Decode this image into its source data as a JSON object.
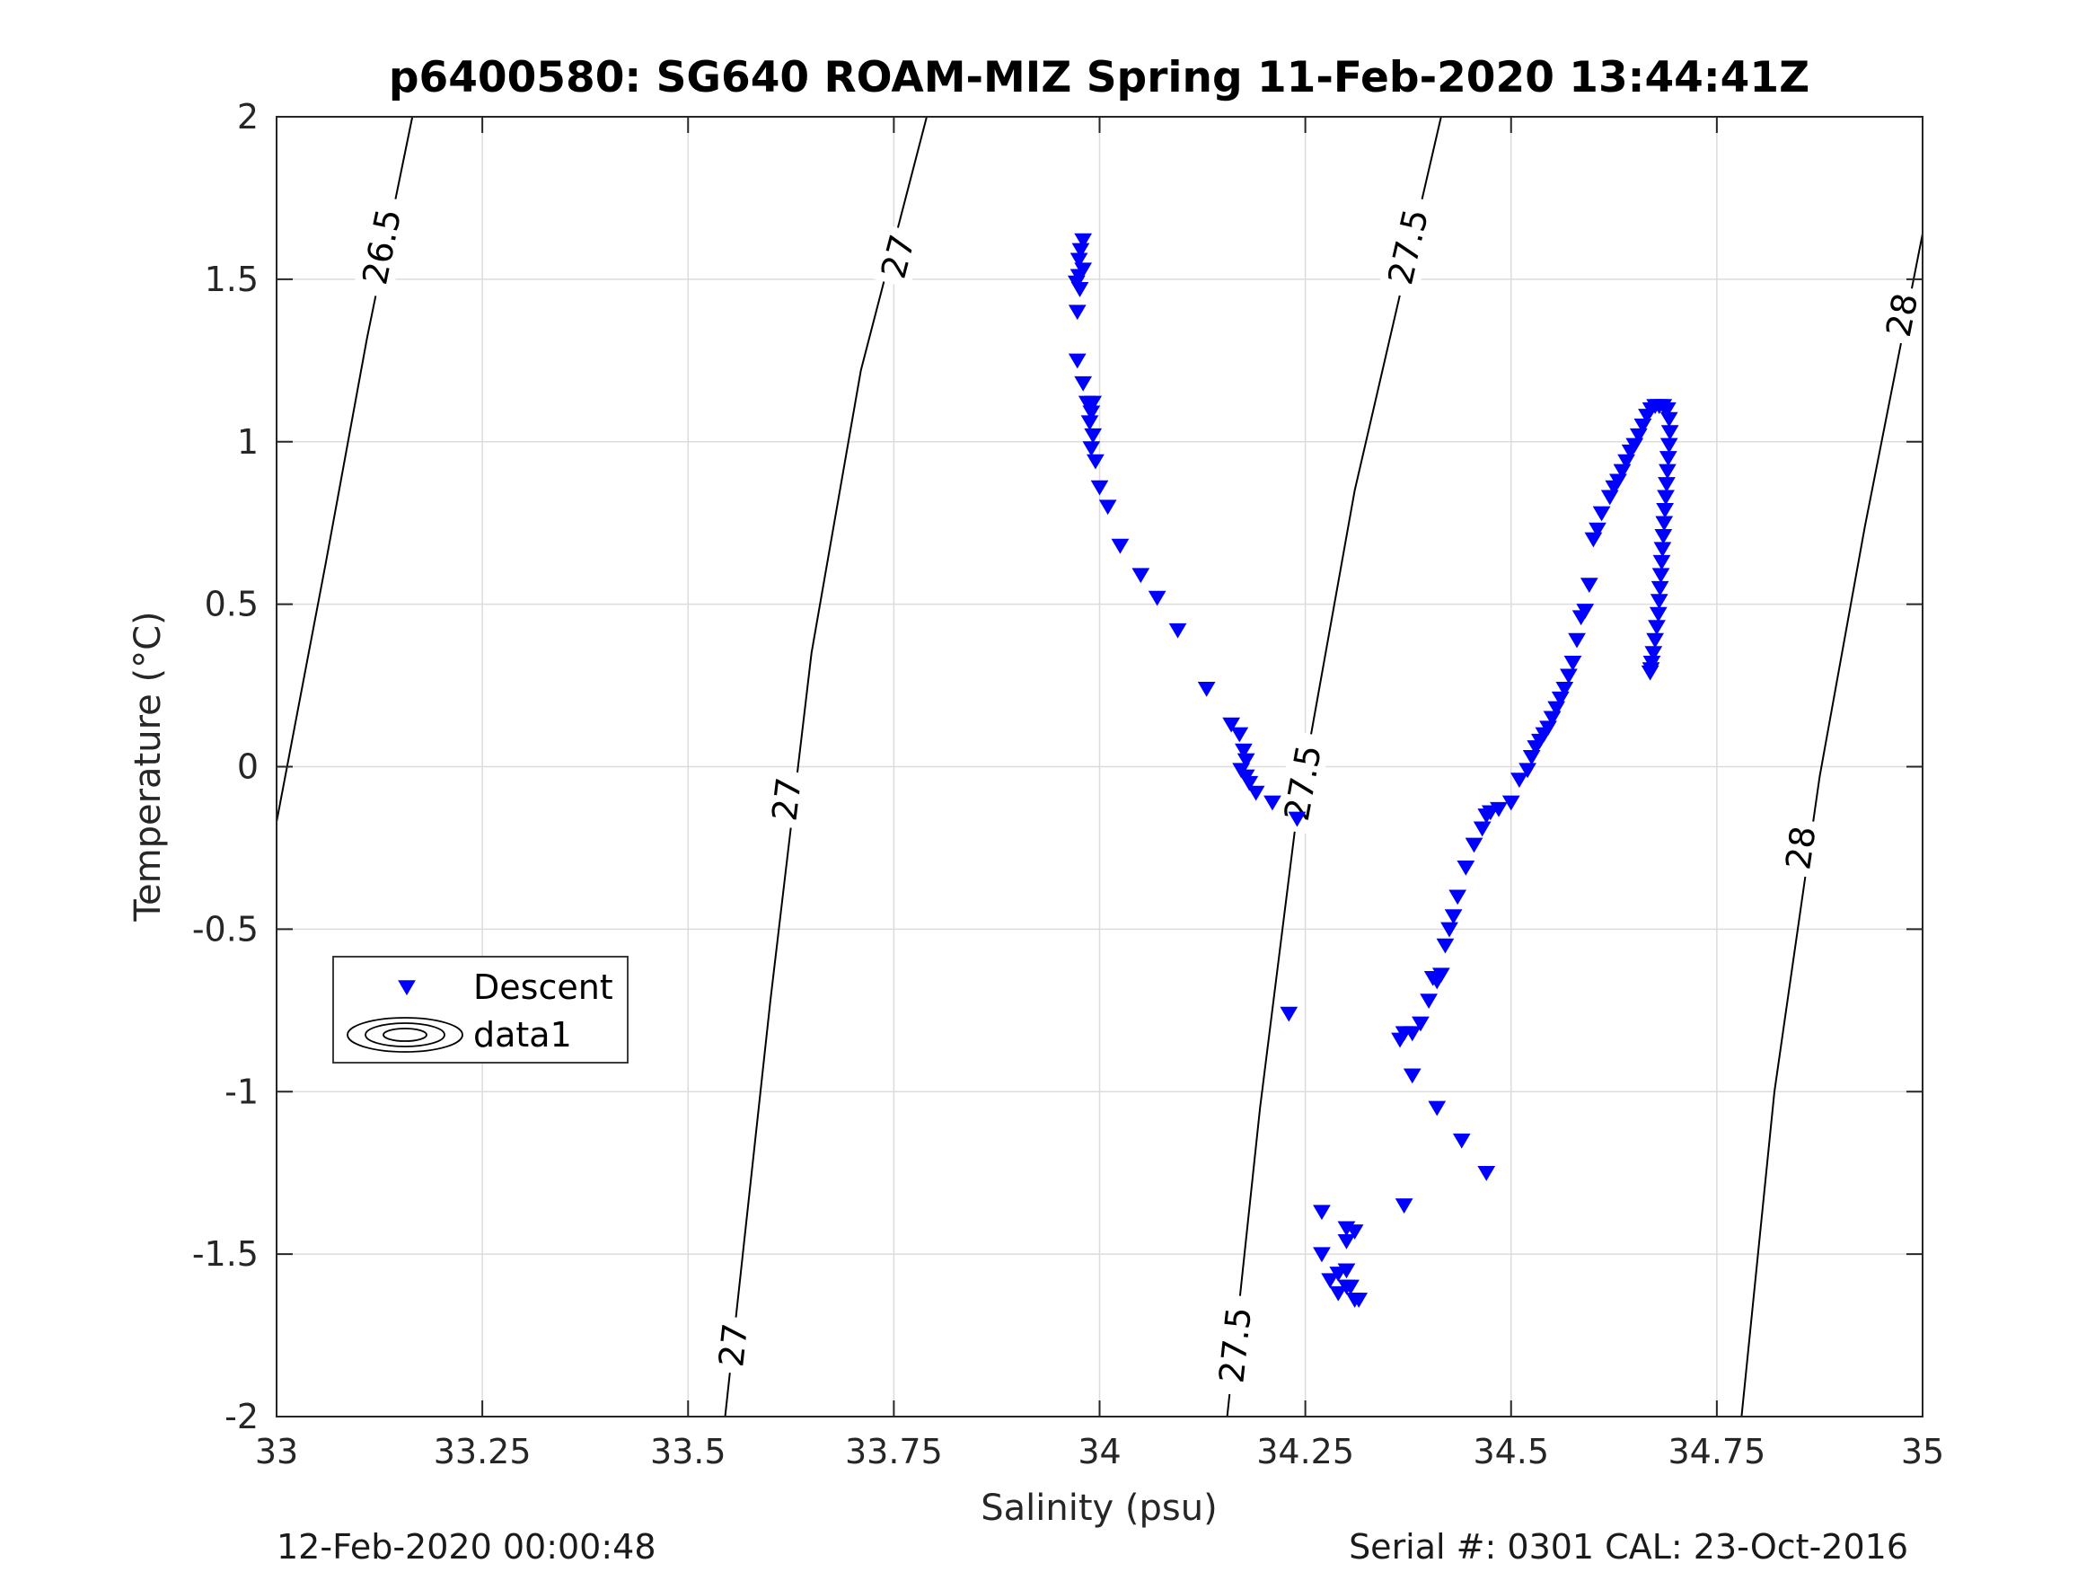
{
  "chart_data": {
    "type": "scatter",
    "title": "p6400580: SG640 ROAM-MIZ Spring 11-Feb-2020 13:44:41Z",
    "xlabel": "Salinity (psu)",
    "ylabel": "Temperature (°C)",
    "xlim": [
      33,
      35
    ],
    "ylim": [
      -2,
      2
    ],
    "xticks": [
      33,
      33.25,
      33.5,
      33.75,
      34,
      34.25,
      34.5,
      34.75,
      35
    ],
    "xtick_labels": [
      "33",
      "33.25",
      "33.5",
      "33.75",
      "34",
      "34.25",
      "34.5",
      "34.75",
      "35"
    ],
    "yticks": [
      -2,
      -1.5,
      -1,
      -0.5,
      0,
      0.5,
      1,
      1.5,
      2
    ],
    "ytick_labels": [
      "-2",
      "-1.5",
      "-1",
      "-0.5",
      "0",
      "0.5",
      "1",
      "1.5",
      "2"
    ],
    "grid": true,
    "legend": {
      "placement": "lower-left",
      "entries": [
        {
          "label": "Descent",
          "marker": "triangle-down",
          "color": "#0000ff"
        },
        {
          "label": "data1",
          "marker": "contour",
          "color": "#000000"
        }
      ]
    },
    "series": [
      {
        "name": "Descent",
        "color": "#0000ff",
        "marker": "triangle-down",
        "points": [
          [
            33.98,
            1.62
          ],
          [
            33.977,
            1.59
          ],
          [
            33.975,
            1.56
          ],
          [
            33.98,
            1.53
          ],
          [
            33.975,
            1.51
          ],
          [
            33.972,
            1.49
          ],
          [
            33.976,
            1.47
          ],
          [
            33.973,
            1.4
          ],
          [
            33.973,
            1.25
          ],
          [
            33.98,
            1.18
          ],
          [
            33.985,
            1.12
          ],
          [
            33.992,
            1.12
          ],
          [
            33.99,
            1.09
          ],
          [
            33.988,
            1.06
          ],
          [
            33.992,
            1.02
          ],
          [
            33.99,
            0.98
          ],
          [
            33.995,
            0.94
          ],
          [
            34.0,
            0.86
          ],
          [
            34.01,
            0.8
          ],
          [
            34.025,
            0.68
          ],
          [
            34.05,
            0.59
          ],
          [
            34.07,
            0.52
          ],
          [
            34.095,
            0.42
          ],
          [
            34.13,
            0.24
          ],
          [
            34.16,
            0.13
          ],
          [
            34.17,
            0.1
          ],
          [
            34.175,
            0.05
          ],
          [
            34.178,
            0.02
          ],
          [
            34.172,
            -0.01
          ],
          [
            34.178,
            -0.03
          ],
          [
            34.182,
            -0.05
          ],
          [
            34.19,
            -0.08
          ],
          [
            34.21,
            -0.11
          ],
          [
            34.24,
            -0.16
          ],
          [
            34.23,
            -0.76
          ],
          [
            34.27,
            -1.37
          ],
          [
            34.27,
            -1.5
          ],
          [
            34.28,
            -1.58
          ],
          [
            34.29,
            -1.62
          ],
          [
            34.3,
            -1.6
          ],
          [
            34.29,
            -1.56
          ],
          [
            34.3,
            -1.55
          ],
          [
            34.31,
            -1.64
          ],
          [
            34.3,
            -1.42
          ],
          [
            34.31,
            -1.43
          ],
          [
            34.3,
            -1.46
          ],
          [
            34.305,
            -1.6
          ],
          [
            34.315,
            -1.64
          ],
          [
            34.37,
            -1.35
          ],
          [
            34.47,
            -1.25
          ],
          [
            34.44,
            -1.15
          ],
          [
            34.41,
            -1.05
          ],
          [
            34.38,
            -0.95
          ],
          [
            34.365,
            -0.84
          ],
          [
            34.37,
            -0.82
          ],
          [
            34.38,
            -0.82
          ],
          [
            34.39,
            -0.79
          ],
          [
            34.4,
            -0.72
          ],
          [
            34.41,
            -0.66
          ],
          [
            34.405,
            -0.65
          ],
          [
            34.415,
            -0.64
          ],
          [
            34.42,
            -0.55
          ],
          [
            34.425,
            -0.5
          ],
          [
            34.43,
            -0.46
          ],
          [
            34.435,
            -0.4
          ],
          [
            34.445,
            -0.31
          ],
          [
            34.455,
            -0.24
          ],
          [
            34.465,
            -0.19
          ],
          [
            34.47,
            -0.15
          ],
          [
            34.475,
            -0.14
          ],
          [
            34.485,
            -0.13
          ],
          [
            34.5,
            -0.11
          ],
          [
            34.51,
            -0.04
          ],
          [
            34.52,
            -0.01
          ],
          [
            34.525,
            0.03
          ],
          [
            34.53,
            0.06
          ],
          [
            34.535,
            0.08
          ],
          [
            34.54,
            0.1
          ],
          [
            34.545,
            0.12
          ],
          [
            34.55,
            0.15
          ],
          [
            34.555,
            0.18
          ],
          [
            34.56,
            0.21
          ],
          [
            34.565,
            0.24
          ],
          [
            34.57,
            0.28
          ],
          [
            34.575,
            0.32
          ],
          [
            34.58,
            0.39
          ],
          [
            34.585,
            0.46
          ],
          [
            34.59,
            0.48
          ],
          [
            34.595,
            0.56
          ],
          [
            34.6,
            0.7
          ],
          [
            34.605,
            0.73
          ],
          [
            34.61,
            0.78
          ],
          [
            34.62,
            0.83
          ],
          [
            34.625,
            0.86
          ],
          [
            34.63,
            0.88
          ],
          [
            34.635,
            0.91
          ],
          [
            34.64,
            0.94
          ],
          [
            34.645,
            0.97
          ],
          [
            34.65,
            0.99
          ],
          [
            34.655,
            1.02
          ],
          [
            34.66,
            1.05
          ],
          [
            34.665,
            1.08
          ],
          [
            34.67,
            1.1
          ],
          [
            34.675,
            1.11
          ],
          [
            34.68,
            1.11
          ],
          [
            34.685,
            1.11
          ],
          [
            34.69,
            1.1
          ],
          [
            34.692,
            1.07
          ],
          [
            34.693,
            1.03
          ],
          [
            34.692,
            0.99
          ],
          [
            34.691,
            0.95
          ],
          [
            34.69,
            0.91
          ],
          [
            34.689,
            0.87
          ],
          [
            34.688,
            0.83
          ],
          [
            34.687,
            0.79
          ],
          [
            34.686,
            0.75
          ],
          [
            34.685,
            0.71
          ],
          [
            34.684,
            0.67
          ],
          [
            34.683,
            0.63
          ],
          [
            34.682,
            0.59
          ],
          [
            34.681,
            0.55
          ],
          [
            34.68,
            0.51
          ],
          [
            34.679,
            0.47
          ],
          [
            34.677,
            0.43
          ],
          [
            34.675,
            0.39
          ],
          [
            34.673,
            0.35
          ],
          [
            34.671,
            0.32
          ],
          [
            34.67,
            0.3
          ],
          [
            34.669,
            0.29
          ]
        ]
      },
      {
        "name": "data1",
        "color": "#000000",
        "marker": "contour",
        "contours": [
          {
            "level": "26.5",
            "points": [
              [
                33.0,
                -0.17
              ],
              [
                33.06,
                0.63
              ],
              [
                33.11,
                1.32
              ],
              [
                33.165,
                2.0
              ]
            ],
            "labels": [
              {
                "text": "26.5",
                "x": 33.128,
                "y": 1.6
              }
            ]
          },
          {
            "level": "27",
            "points": [
              [
                33.545,
                -2.0
              ],
              [
                33.6,
                -0.72
              ],
              [
                33.65,
                0.35
              ],
              [
                33.71,
                1.22
              ],
              [
                33.79,
                2.0
              ]
            ],
            "labels": [
              {
                "text": "27",
                "x": 33.555,
                "y": -1.78
              },
              {
                "text": "27",
                "x": 33.62,
                "y": -0.1
              },
              {
                "text": "27",
                "x": 33.755,
                "y": 1.57
              }
            ]
          },
          {
            "level": "27.5",
            "points": [
              [
                34.155,
                -2.0
              ],
              [
                34.195,
                -1.05
              ],
              [
                34.24,
                -0.14
              ],
              [
                34.31,
                0.85
              ],
              [
                34.415,
                2.0
              ]
            ],
            "labels": [
              {
                "text": "27.5",
                "x": 34.165,
                "y": -1.78
              },
              {
                "text": "27.5",
                "x": 34.247,
                "y": -0.05
              },
              {
                "text": "27.5",
                "x": 34.375,
                "y": 1.6
              }
            ]
          },
          {
            "level": "28",
            "points": [
              [
                34.78,
                -2.0
              ],
              [
                34.82,
                -1.0
              ],
              [
                34.875,
                -0.03
              ],
              [
                34.93,
                0.74
              ],
              [
                35.0,
                1.64
              ]
            ],
            "labels": [
              {
                "text": "28",
                "x": 34.852,
                "y": -0.25
              },
              {
                "text": "28",
                "x": 34.975,
                "y": 1.39
              }
            ]
          }
        ]
      }
    ]
  },
  "footer": {
    "left": "12-Feb-2020 00:00:48",
    "right": "Serial #: 0301  CAL: 23-Oct-2016"
  }
}
